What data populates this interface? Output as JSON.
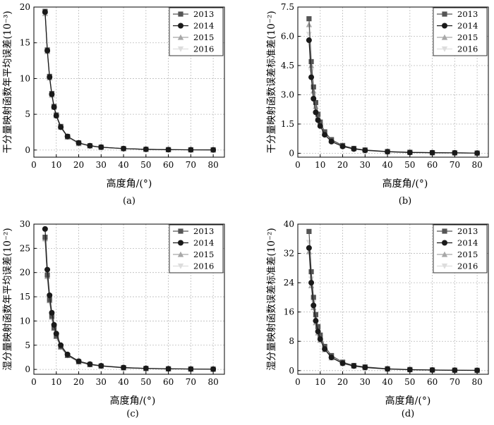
{
  "x_values": [
    5,
    6,
    7,
    8,
    9,
    10,
    12,
    15,
    20,
    25,
    30,
    40,
    50,
    60,
    70,
    80
  ],
  "legend_years": [
    "2013",
    "2014",
    "2015",
    "2016"
  ],
  "series_colors": [
    "#555555",
    "#1a1a1a",
    "#a8a8a8",
    "#dddddd"
  ],
  "chart_data": [
    {
      "type": "line",
      "panel_label": "(a)",
      "xlabel": "高度角/(°)",
      "ylabel": "干分量映射函数年平均误差",
      "ylabel_unit": "(10⁻³)",
      "xlim": [
        0,
        85
      ],
      "ylim": [
        -1,
        20
      ],
      "xticks": [
        "0",
        "10",
        "20",
        "30",
        "40",
        "50",
        "60",
        "70",
        "80"
      ],
      "yticks": [
        "0",
        "5",
        "10",
        "15",
        "20"
      ],
      "x": [
        5,
        6,
        7,
        8,
        9,
        10,
        12,
        15,
        20,
        25,
        30,
        40,
        50,
        60,
        70,
        80
      ],
      "series": [
        {
          "name": "2013",
          "marker": "square",
          "values": [
            19.4,
            14.0,
            10.3,
            7.9,
            6.1,
            4.9,
            3.3,
            1.9,
            1.0,
            0.6,
            0.4,
            0.2,
            0.1,
            0.05,
            0.03,
            0.02
          ]
        },
        {
          "name": "2014",
          "marker": "circle",
          "values": [
            19.3,
            13.9,
            10.2,
            7.8,
            6.0,
            4.8,
            3.2,
            1.9,
            1.0,
            0.6,
            0.4,
            0.2,
            0.1,
            0.05,
            0.03,
            0.02
          ]
        },
        {
          "name": "2015",
          "marker": "triangle-up",
          "values": [
            19.1,
            13.8,
            10.1,
            7.7,
            6.0,
            4.8,
            3.2,
            1.8,
            0.9,
            0.6,
            0.4,
            0.2,
            0.1,
            0.05,
            0.03,
            0.02
          ]
        },
        {
          "name": "2016",
          "marker": "triangle-down",
          "values": [
            19.0,
            13.7,
            10.0,
            7.6,
            5.9,
            4.7,
            3.1,
            1.8,
            0.9,
            0.5,
            0.3,
            0.2,
            0.1,
            0.05,
            0.03,
            0.02
          ]
        }
      ]
    },
    {
      "type": "line",
      "panel_label": "(b)",
      "xlabel": "高度角/(°)",
      "ylabel": "干分量映射函数误差标准差",
      "ylabel_unit": "(10⁻²)",
      "xlim": [
        0,
        85
      ],
      "ylim": [
        -0.2,
        7.5
      ],
      "xticks": [
        "0",
        "10",
        "20",
        "30",
        "40",
        "50",
        "60",
        "70",
        "80"
      ],
      "yticks": [
        "0",
        "1.5",
        "3.0",
        "4.5",
        "6.0",
        "7.5"
      ],
      "x": [
        5,
        6,
        7,
        8,
        9,
        10,
        12,
        15,
        20,
        25,
        30,
        40,
        50,
        60,
        70,
        80
      ],
      "series": [
        {
          "name": "2013",
          "marker": "square",
          "values": [
            6.9,
            4.7,
            3.4,
            2.6,
            2.0,
            1.6,
            1.1,
            0.7,
            0.4,
            0.25,
            0.17,
            0.09,
            0.05,
            0.03,
            0.02,
            0.01
          ]
        },
        {
          "name": "2014",
          "marker": "circle",
          "values": [
            5.8,
            3.9,
            2.8,
            2.1,
            1.7,
            1.4,
            0.95,
            0.6,
            0.35,
            0.22,
            0.15,
            0.08,
            0.04,
            0.03,
            0.02,
            0.01
          ]
        },
        {
          "name": "2015",
          "marker": "triangle-up",
          "values": [
            6.6,
            4.5,
            3.2,
            2.4,
            1.9,
            1.5,
            1.05,
            0.65,
            0.38,
            0.24,
            0.16,
            0.08,
            0.05,
            0.03,
            0.02,
            0.01
          ]
        },
        {
          "name": "2016",
          "marker": "triangle-down",
          "values": [
            6.1,
            4.2,
            3.0,
            2.3,
            1.8,
            1.45,
            1.0,
            0.62,
            0.36,
            0.23,
            0.15,
            0.08,
            0.04,
            0.03,
            0.02,
            0.01
          ]
        }
      ]
    },
    {
      "type": "line",
      "panel_label": "(c)",
      "xlabel": "高度角/(°)",
      "ylabel": "湿分量映射函数年平均误差",
      "ylabel_unit": "(10⁻²)",
      "xlim": [
        0,
        85
      ],
      "ylim": [
        -1,
        30
      ],
      "xticks": [
        "0",
        "10",
        "20",
        "30",
        "40",
        "50",
        "60",
        "70",
        "80"
      ],
      "yticks": [
        "0",
        "5",
        "10",
        "15",
        "20",
        "25",
        "30"
      ],
      "x": [
        5,
        6,
        7,
        8,
        9,
        10,
        12,
        15,
        20,
        25,
        30,
        40,
        50,
        60,
        70,
        80
      ],
      "series": [
        {
          "name": "2013",
          "marker": "square",
          "values": [
            27.3,
            19.5,
            14.4,
            11.0,
            8.6,
            6.9,
            4.7,
            2.9,
            1.6,
            1.0,
            0.7,
            0.35,
            0.2,
            0.12,
            0.08,
            0.05
          ]
        },
        {
          "name": "2014",
          "marker": "circle",
          "values": [
            29.0,
            20.6,
            15.3,
            11.7,
            9.2,
            7.4,
            5.0,
            3.1,
            1.7,
            1.1,
            0.75,
            0.38,
            0.21,
            0.13,
            0.08,
            0.05
          ]
        },
        {
          "name": "2015",
          "marker": "triangle-up",
          "values": [
            27.0,
            19.2,
            14.2,
            10.8,
            8.5,
            6.8,
            4.6,
            2.9,
            1.6,
            1.0,
            0.7,
            0.35,
            0.2,
            0.12,
            0.08,
            0.05
          ]
        },
        {
          "name": "2016",
          "marker": "triangle-down",
          "values": [
            26.5,
            18.8,
            13.9,
            10.6,
            8.3,
            6.7,
            4.5,
            2.8,
            1.5,
            0.95,
            0.65,
            0.33,
            0.19,
            0.12,
            0.08,
            0.05
          ]
        }
      ]
    },
    {
      "type": "line",
      "panel_label": "(d)",
      "xlabel": "高度角/(°)",
      "ylabel": "湿分量映射函数误差标准差",
      "ylabel_unit": "(10⁻²)",
      "xlim": [
        0,
        85
      ],
      "ylim": [
        -1,
        40
      ],
      "xticks": [
        "0",
        "10",
        "20",
        "30",
        "40",
        "50",
        "60",
        "70",
        "80"
      ],
      "yticks": [
        "0",
        "8",
        "16",
        "24",
        "32",
        "40"
      ],
      "x": [
        5,
        6,
        7,
        8,
        9,
        10,
        12,
        15,
        20,
        25,
        30,
        40,
        50,
        60,
        70,
        80
      ],
      "series": [
        {
          "name": "2013",
          "marker": "square",
          "values": [
            38.0,
            27.0,
            20.0,
            15.3,
            12.0,
            9.7,
            6.6,
            4.1,
            2.3,
            1.4,
            1.0,
            0.5,
            0.28,
            0.17,
            0.11,
            0.07
          ]
        },
        {
          "name": "2014",
          "marker": "circle",
          "values": [
            33.5,
            24.0,
            17.8,
            13.6,
            10.7,
            8.6,
            5.9,
            3.6,
            2.0,
            1.25,
            0.85,
            0.45,
            0.25,
            0.15,
            0.1,
            0.06
          ]
        },
        {
          "name": "2015",
          "marker": "triangle-up",
          "values": [
            32.5,
            23.2,
            17.2,
            13.1,
            10.3,
            8.3,
            5.7,
            3.5,
            1.95,
            1.2,
            0.82,
            0.43,
            0.24,
            0.15,
            0.1,
            0.06
          ]
        },
        {
          "name": "2016",
          "marker": "triangle-down",
          "values": [
            35.0,
            25.0,
            18.5,
            14.1,
            11.1,
            8.9,
            6.1,
            3.8,
            2.1,
            1.3,
            0.9,
            0.46,
            0.26,
            0.16,
            0.1,
            0.06
          ]
        }
      ]
    }
  ]
}
